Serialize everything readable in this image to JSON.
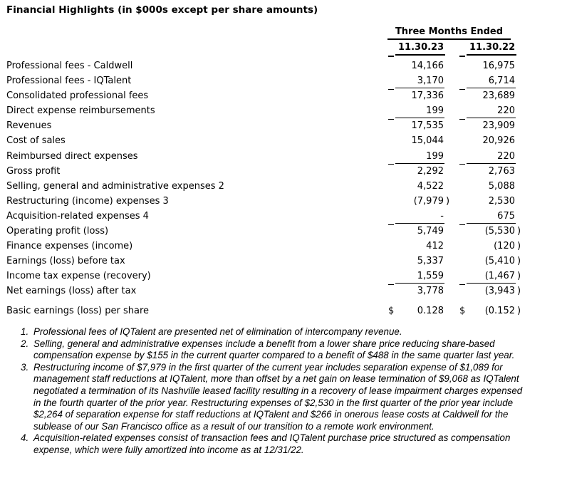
{
  "title": "Financial Highlights (in $000s except per share amounts)",
  "table": {
    "period_header": "Three Months Ended",
    "col1_header": "11.30.23",
    "col2_header": "11.30.22",
    "rows": [
      {
        "label": "Professional fees - Caldwell",
        "c1": {
          "n": "14,166"
        },
        "c2": {
          "n": "16,975"
        }
      },
      {
        "label": "Professional fees - IQTalent",
        "c1": {
          "n": "3,170"
        },
        "c2": {
          "n": "6,714"
        },
        "sumline": true
      },
      {
        "label": "Consolidated professional fees",
        "c1": {
          "n": "17,336"
        },
        "c2": {
          "n": "23,689"
        }
      },
      {
        "label": "Direct expense reimbursements",
        "c1": {
          "n": "199"
        },
        "c2": {
          "n": "220"
        },
        "sumline": true
      },
      {
        "label": "Revenues",
        "c1": {
          "n": "17,535"
        },
        "c2": {
          "n": "23,909"
        }
      },
      {
        "label": "Cost of sales",
        "c1": {
          "n": "15,044"
        },
        "c2": {
          "n": "20,926"
        }
      },
      {
        "label": "Reimbursed direct expenses",
        "c1": {
          "n": "199"
        },
        "c2": {
          "n": "220"
        },
        "sumline": true
      },
      {
        "label": "Gross profit",
        "c1": {
          "n": "2,292"
        },
        "c2": {
          "n": "2,763"
        }
      },
      {
        "label": "Selling, general and administrative expenses 2",
        "c1": {
          "n": "4,522"
        },
        "c2": {
          "n": "5,088"
        }
      },
      {
        "label": "Restructuring (income) expenses 3",
        "c1": {
          "n": "(7,979",
          "p": ")"
        },
        "c2": {
          "n": "2,530"
        }
      },
      {
        "label": "Acquisition-related expenses 4",
        "c1": {
          "n": "-"
        },
        "c2": {
          "n": "675"
        },
        "sumline": true
      },
      {
        "label": "Operating profit (loss)",
        "c1": {
          "n": "5,749"
        },
        "c2": {
          "n": "(5,530",
          "p": ")"
        }
      },
      {
        "label": "Finance expenses (income)",
        "c1": {
          "n": "412"
        },
        "c2": {
          "n": "(120",
          "p": ")"
        }
      },
      {
        "label": "Earnings (loss) before tax",
        "c1": {
          "n": "5,337"
        },
        "c2": {
          "n": "(5,410",
          "p": ")"
        }
      },
      {
        "label": "Income tax expense (recovery)",
        "c1": {
          "n": "1,559"
        },
        "c2": {
          "n": "(1,467",
          "p": ")"
        },
        "sumline": true
      },
      {
        "label": "Net earnings (loss) after tax",
        "c1": {
          "n": "3,778"
        },
        "c2": {
          "n": "(3,943",
          "p": ")"
        }
      },
      {
        "label": "Basic earnings (loss) per share",
        "c1": {
          "d": "$",
          "n": "0.128"
        },
        "c2": {
          "d": "$",
          "n": "(0.152",
          "p": ")"
        },
        "gap_before": true
      }
    ]
  },
  "footnotes": [
    {
      "num": "1.",
      "text": "Professional fees of IQTalent are presented net of elimination of intercompany revenue."
    },
    {
      "num": "2.",
      "text": "Selling, general and administrative expenses include a benefit from a lower share price reducing share-based compensation expense by $155 in the current quarter compared to a benefit of $488 in the same quarter last year."
    },
    {
      "num": "3.",
      "text": "Restructuring income of $7,979 in the first quarter of the current year includes separation expense of $1,089 for management staff reductions at IQTalent, more than offset by a net gain on lease termination of $9,068 as IQTalent negotiated a termination of its Nashville leased facility resulting in a recovery of lease impairment charges expensed in the fourth quarter of the prior year. Restructuring expenses of $2,530 in the first quarter of the prior year include $2,264 of separation expense for staff reductions at IQTalent and $266 in onerous lease costs at Caldwell for the sublease of our San Francisco office as a result of our transition to a remote work environment."
    },
    {
      "num": "4.",
      "text": "Acquisition-related expenses consist of transaction fees and IQTalent purchase price structured as compensation expense, which were fully amortized into income as at 12/31/22."
    }
  ]
}
